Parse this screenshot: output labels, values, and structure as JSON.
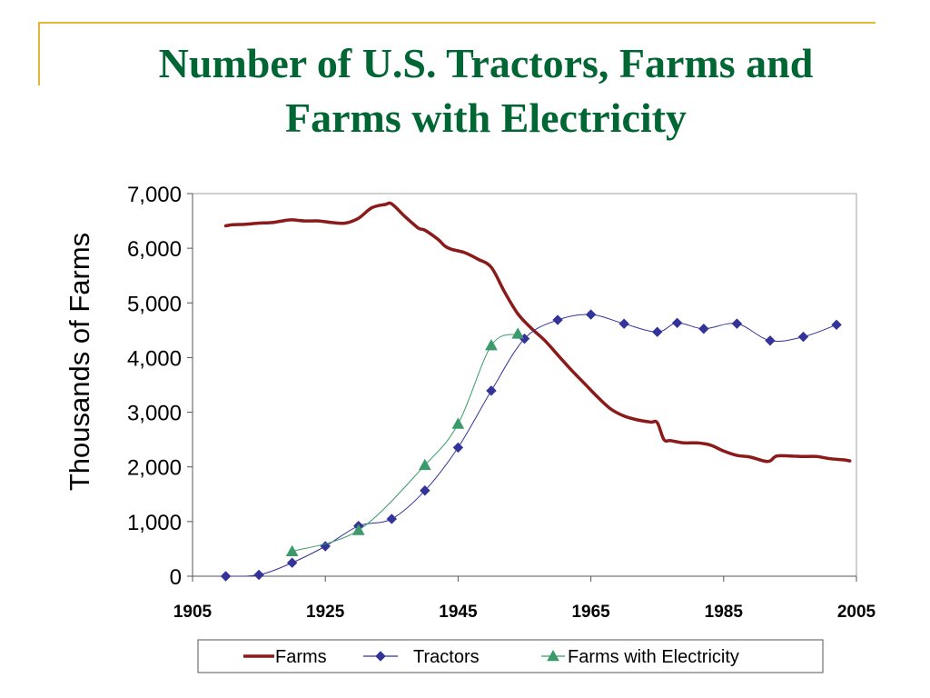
{
  "slide": {
    "title_line1": "Number of U.S. Tractors, Farms and",
    "title_line2": "Farms with Electricity",
    "title_color": "#006633",
    "frame_color": "#e1b83a"
  },
  "chart_data": {
    "type": "line",
    "title": "Number of U.S. Tractors, Farms and Farms with Electricity",
    "xlabel": "",
    "ylabel": "Thousands of Farms",
    "xlim": [
      1905,
      2005
    ],
    "ylim": [
      0,
      7000
    ],
    "x_ticks": [
      1905,
      1925,
      1945,
      1965,
      1985,
      2005
    ],
    "x_tick_labels": [
      "1905",
      "1925",
      "1945",
      "1965",
      "1985",
      "2005"
    ],
    "y_ticks": [
      0,
      1000,
      2000,
      3000,
      4000,
      5000,
      6000,
      7000
    ],
    "y_tick_labels": [
      "0",
      "1,000",
      "2,000",
      "3,000",
      "4,000",
      "5,000",
      "6,000",
      "7,000"
    ],
    "grid": false,
    "legend_position": "bottom",
    "series": [
      {
        "name": "Farms",
        "color": "#8b1a1a",
        "marker": "none",
        "points": [
          [
            1910,
            6410
          ],
          [
            1911,
            6430
          ],
          [
            1913,
            6440
          ],
          [
            1915,
            6460
          ],
          [
            1917,
            6470
          ],
          [
            1919,
            6510
          ],
          [
            1920,
            6520
          ],
          [
            1922,
            6500
          ],
          [
            1924,
            6500
          ],
          [
            1926,
            6470
          ],
          [
            1928,
            6460
          ],
          [
            1930,
            6550
          ],
          [
            1932,
            6740
          ],
          [
            1934,
            6800
          ],
          [
            1935,
            6810
          ],
          [
            1937,
            6580
          ],
          [
            1939,
            6370
          ],
          [
            1940,
            6330
          ],
          [
            1942,
            6160
          ],
          [
            1943,
            6040
          ],
          [
            1944,
            5980
          ],
          [
            1946,
            5920
          ],
          [
            1948,
            5800
          ],
          [
            1950,
            5650
          ],
          [
            1952,
            5200
          ],
          [
            1954,
            4800
          ],
          [
            1956,
            4540
          ],
          [
            1958,
            4320
          ],
          [
            1960,
            4050
          ],
          [
            1962,
            3780
          ],
          [
            1964,
            3530
          ],
          [
            1966,
            3280
          ],
          [
            1968,
            3060
          ],
          [
            1970,
            2930
          ],
          [
            1972,
            2860
          ],
          [
            1974,
            2820
          ],
          [
            1975,
            2810
          ],
          [
            1976,
            2500
          ],
          [
            1977,
            2480
          ],
          [
            1979,
            2440
          ],
          [
            1981,
            2440
          ],
          [
            1983,
            2400
          ],
          [
            1985,
            2290
          ],
          [
            1987,
            2210
          ],
          [
            1989,
            2180
          ],
          [
            1991,
            2110
          ],
          [
            1992,
            2110
          ],
          [
            1993,
            2200
          ],
          [
            1995,
            2200
          ],
          [
            1997,
            2190
          ],
          [
            1999,
            2190
          ],
          [
            2001,
            2150
          ],
          [
            2003,
            2130
          ],
          [
            2004,
            2110
          ]
        ]
      },
      {
        "name": "Tractors",
        "color": "#333399",
        "marker": "diamond",
        "points": [
          [
            1910,
            0
          ],
          [
            1915,
            25
          ],
          [
            1920,
            246
          ],
          [
            1925,
            549
          ],
          [
            1930,
            920
          ],
          [
            1935,
            1048
          ],
          [
            1940,
            1567
          ],
          [
            1945,
            2354
          ],
          [
            1950,
            3394
          ],
          [
            1955,
            4345
          ],
          [
            1960,
            4688
          ],
          [
            1965,
            4787
          ],
          [
            1970,
            4619
          ],
          [
            1975,
            4469
          ],
          [
            1978,
            4634
          ],
          [
            1982,
            4527
          ],
          [
            1987,
            4620
          ],
          [
            1992,
            4310
          ],
          [
            1997,
            4380
          ],
          [
            2002,
            4600
          ]
        ]
      },
      {
        "name": "Farms with Electricity",
        "color": "#3a9a6a",
        "marker": "triangle",
        "points": [
          [
            1920,
            453
          ],
          [
            1930,
            841
          ],
          [
            1940,
            2032
          ],
          [
            1945,
            2786
          ],
          [
            1950,
            4222
          ],
          [
            1954,
            4433
          ]
        ]
      }
    ]
  }
}
